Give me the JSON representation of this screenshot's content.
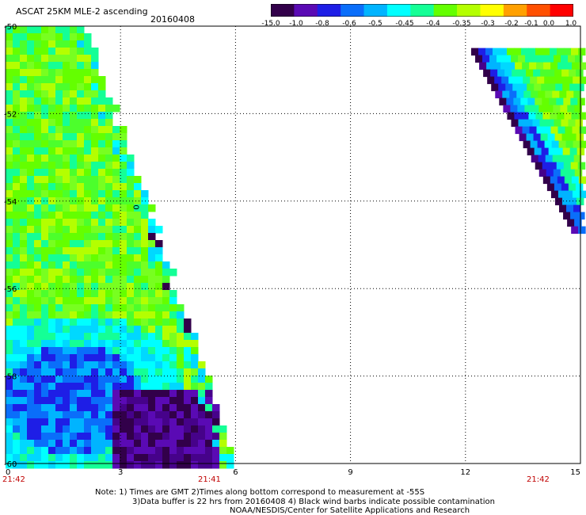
{
  "header": {
    "title": "ASCAT 25KM MLE-2 ascending",
    "date": "20160408"
  },
  "colorbar": {
    "labels": [
      "-15.0",
      "-1.0",
      "-0.8",
      "-0.6",
      "-0.5",
      "-0.45",
      "-0.4",
      "-0.35",
      "-0.3",
      "-0.2",
      "-0.1",
      "0.0",
      "1.0"
    ],
    "colors": [
      "#32004a",
      "#5a0ab4",
      "#1e1ee6",
      "#0a6efa",
      "#00b4ff",
      "#00ffff",
      "#14ff96",
      "#64ff00",
      "#b4ff00",
      "#ffff00",
      "#ffa000",
      "#ff5000",
      "#ff0000"
    ]
  },
  "pass_label": "0",
  "times": {
    "left": "21:42",
    "middle": "21:41",
    "right": "21:42"
  },
  "notes": {
    "line1": "Note: 1) Times are GMT 2)Times along bottom correspond to measurement at -55S",
    "line2": "3)Data buffer is 22 hrs from 20160408 4) Black wind barbs indicate possible contamination",
    "line3": "NOAA/NESDIS/Center for Satellite Applications and Research"
  },
  "chart_data": {
    "type": "heatmap",
    "title": "ASCAT 25KM MLE-2 ascending",
    "date": "20160408",
    "x_axis": {
      "ticks": [
        0,
        3,
        6,
        9,
        12,
        15
      ],
      "tick_labels": [
        "0",
        "3",
        "6",
        "9",
        "12",
        "15"
      ],
      "range": [
        0,
        15
      ]
    },
    "y_axis": {
      "ticks": [
        -50,
        -52,
        -54,
        -56,
        -58,
        -60
      ],
      "tick_labels": [
        "-50",
        "-52",
        "-54",
        "-56",
        "-58",
        "-60"
      ],
      "range": [
        -60,
        -50
      ]
    },
    "grid": true,
    "colorscale": {
      "values": [
        -15.0,
        -1.0,
        -0.8,
        -0.6,
        -0.5,
        -0.45,
        -0.4,
        -0.35,
        -0.3,
        -0.2,
        -0.1,
        0.0,
        1.0
      ]
    },
    "swaths": [
      {
        "region": "left",
        "x_range": [
          0,
          5.9
        ],
        "y_range": [
          -60,
          -50
        ],
        "dominant_values": [
          -0.35,
          -0.3,
          -0.4,
          -0.6,
          -0.8,
          -1.0,
          -15.0
        ]
      },
      {
        "region": "right",
        "x_range": [
          11.9,
          15
        ],
        "y_range": [
          -54.7,
          -50.5
        ],
        "dominant_values": [
          -0.35,
          -0.4,
          -0.5,
          -0.6,
          -1.0,
          -15.0
        ]
      }
    ]
  }
}
